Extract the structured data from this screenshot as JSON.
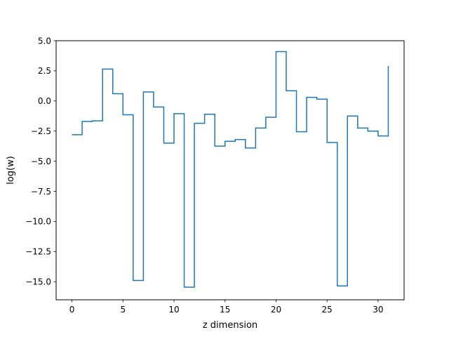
{
  "chart_data": {
    "type": "line",
    "drawstyle": "steps-post",
    "title": "",
    "xlabel": "z dimension",
    "ylabel": "log(w)",
    "xlim": [
      -1.55,
      32.55
    ],
    "ylim": [
      -16.5,
      5.0
    ],
    "xticks": [
      0,
      5,
      10,
      15,
      20,
      25,
      30
    ],
    "xtick_labels": [
      "0",
      "5",
      "10",
      "15",
      "20",
      "25",
      "30"
    ],
    "yticks": [
      5.0,
      2.5,
      0.0,
      -2.5,
      -5.0,
      -7.5,
      -10.0,
      -12.5,
      -15.0
    ],
    "ytick_labels": [
      "5.0",
      "2.5",
      "0.0",
      "−2.5",
      "−5.0",
      "−7.5",
      "−10.0",
      "−12.5",
      "−15.0"
    ],
    "grid": false,
    "color": "#1f77b4",
    "x": [
      0,
      1,
      2,
      3,
      4,
      5,
      6,
      7,
      8,
      9,
      10,
      11,
      12,
      13,
      14,
      15,
      16,
      17,
      18,
      19,
      20,
      21,
      22,
      23,
      24,
      25,
      26,
      27,
      28,
      29,
      30,
      31
    ],
    "y": [
      -2.8,
      -1.7,
      -1.65,
      2.65,
      0.6,
      -1.15,
      -14.9,
      0.75,
      -0.5,
      -3.5,
      -1.05,
      -15.45,
      -1.85,
      -1.1,
      -3.75,
      -3.35,
      -3.2,
      -3.9,
      -2.25,
      -1.35,
      4.1,
      0.85,
      -2.55,
      0.3,
      0.15,
      -3.45,
      -15.35,
      -1.25,
      -2.25,
      -2.5,
      -2.9,
      2.9
    ]
  }
}
